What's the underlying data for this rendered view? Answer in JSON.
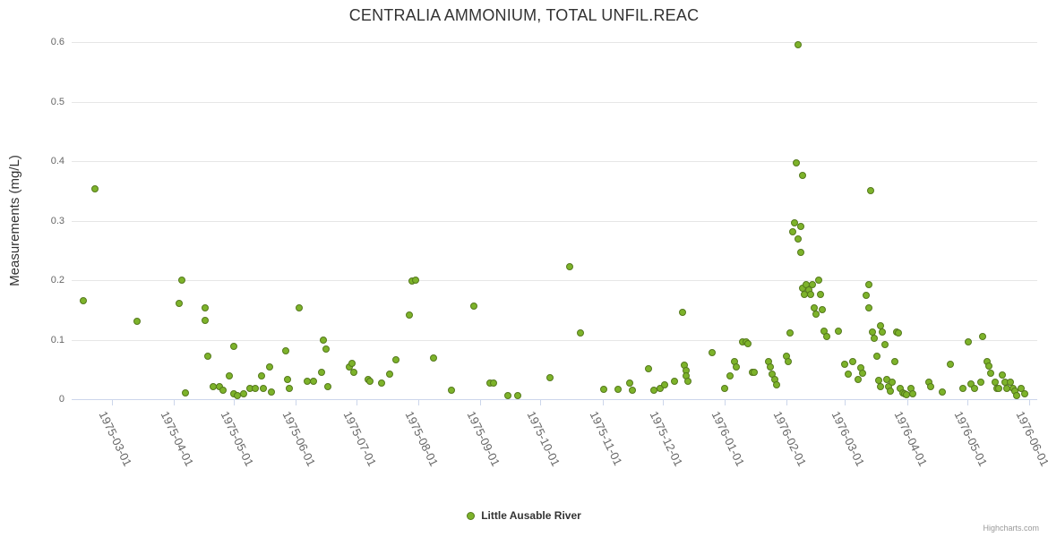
{
  "title": "CENTRALIA AMMONIUM, TOTAL UNFIL.REAC",
  "legend": {
    "series_label": "Little Ausable River"
  },
  "credits": "Highcharts.com",
  "chart_data": {
    "type": "scatter",
    "title": "CENTRALIA AMMONIUM, TOTAL UNFIL.REAC",
    "xlabel": "",
    "ylabel": "Measurements (mg/L)",
    "ylim": [
      0,
      0.6
    ],
    "y_ticks": [
      "0",
      "0.1",
      "0.2",
      "0.3",
      "0.4",
      "0.5",
      "0.6"
    ],
    "x_range": [
      "1975-02-09",
      "1976-06-05"
    ],
    "x_ticks": [
      "1975-03-01",
      "1975-04-01",
      "1975-05-01",
      "1975-06-01",
      "1975-07-01",
      "1975-08-01",
      "1975-09-01",
      "1975-10-01",
      "1975-11-01",
      "1975-12-01",
      "1976-01-01",
      "1976-02-01",
      "1976-03-01",
      "1976-04-01",
      "1976-05-01",
      "1976-06-01"
    ],
    "grid": "horizontal-only",
    "legend_position": "bottom-center",
    "series": [
      {
        "name": "Little Ausable River",
        "color": "#7db32a",
        "marker_border_color": "#55791d",
        "points": [
          [
            "1975-02-15",
            0.165
          ],
          [
            "1975-02-21",
            0.352
          ],
          [
            "1975-03-14",
            0.13
          ],
          [
            "1975-04-04",
            0.16
          ],
          [
            "1975-04-05",
            0.2
          ],
          [
            "1975-04-07",
            0.01
          ],
          [
            "1975-04-17",
            0.152
          ],
          [
            "1975-04-17",
            0.132
          ],
          [
            "1975-04-18",
            0.071
          ],
          [
            "1975-04-21",
            0.021
          ],
          [
            "1975-04-24",
            0.021
          ],
          [
            "1975-04-26",
            0.015
          ],
          [
            "1975-04-29",
            0.038
          ],
          [
            "1975-05-01",
            0.088
          ],
          [
            "1975-05-01",
            0.009
          ],
          [
            "1975-05-03",
            0.005
          ],
          [
            "1975-05-06",
            0.009
          ],
          [
            "1975-05-09",
            0.017
          ],
          [
            "1975-05-12",
            0.017
          ],
          [
            "1975-05-15",
            0.039
          ],
          [
            "1975-05-16",
            0.018
          ],
          [
            "1975-05-19",
            0.054
          ],
          [
            "1975-05-20",
            0.012
          ],
          [
            "1975-05-27",
            0.08
          ],
          [
            "1975-05-28",
            0.033
          ],
          [
            "1975-05-29",
            0.018
          ],
          [
            "1975-06-03",
            0.152
          ],
          [
            "1975-06-07",
            0.029
          ],
          [
            "1975-06-10",
            0.029
          ],
          [
            "1975-06-14",
            0.045
          ],
          [
            "1975-06-15",
            0.098
          ],
          [
            "1975-06-16",
            0.084
          ],
          [
            "1975-06-17",
            0.02
          ],
          [
            "1975-06-28",
            0.053
          ],
          [
            "1975-06-29",
            0.06
          ],
          [
            "1975-06-30",
            0.045
          ],
          [
            "1975-07-07",
            0.032
          ],
          [
            "1975-07-08",
            0.029
          ],
          [
            "1975-07-14",
            0.026
          ],
          [
            "1975-07-18",
            0.041
          ],
          [
            "1975-07-21",
            0.066
          ],
          [
            "1975-07-28",
            0.14
          ],
          [
            "1975-07-29",
            0.198
          ],
          [
            "1975-07-31",
            0.2
          ],
          [
            "1975-08-09",
            0.068
          ],
          [
            "1975-08-18",
            0.015
          ],
          [
            "1975-08-29",
            0.155
          ],
          [
            "1975-09-06",
            0.026
          ],
          [
            "1975-09-08",
            0.026
          ],
          [
            "1975-09-15",
            0.005
          ],
          [
            "1975-09-20",
            0.005
          ],
          [
            "1975-10-06",
            0.035
          ],
          [
            "1975-10-16",
            0.222
          ],
          [
            "1975-10-21",
            0.11
          ],
          [
            "1975-11-02",
            0.016
          ],
          [
            "1975-11-09",
            0.016
          ],
          [
            "1975-11-15",
            0.027
          ],
          [
            "1975-11-16",
            0.014
          ],
          [
            "1975-11-24",
            0.05
          ],
          [
            "1975-11-27",
            0.014
          ],
          [
            "1975-11-30",
            0.017
          ],
          [
            "1975-12-02",
            0.024
          ],
          [
            "1975-12-07",
            0.029
          ],
          [
            "1975-12-11",
            0.145
          ],
          [
            "1975-12-12",
            0.057
          ],
          [
            "1975-12-13",
            0.047
          ],
          [
            "1975-12-13",
            0.038
          ],
          [
            "1975-12-14",
            0.029
          ],
          [
            "1975-12-26",
            0.077
          ],
          [
            "1976-01-01",
            0.018
          ],
          [
            "1976-01-04",
            0.038
          ],
          [
            "1976-01-06",
            0.063
          ],
          [
            "1976-01-07",
            0.054
          ],
          [
            "1976-01-10",
            0.095
          ],
          [
            "1976-01-12",
            0.095
          ],
          [
            "1976-01-13",
            0.092
          ],
          [
            "1976-01-15",
            0.044
          ],
          [
            "1976-01-16",
            0.044
          ],
          [
            "1976-01-23",
            0.063
          ],
          [
            "1976-01-24",
            0.053
          ],
          [
            "1976-01-25",
            0.042
          ],
          [
            "1976-01-26",
            0.032
          ],
          [
            "1976-01-27",
            0.024
          ],
          [
            "1976-02-01",
            0.072
          ],
          [
            "1976-02-02",
            0.063
          ],
          [
            "1976-02-03",
            0.11
          ],
          [
            "1976-02-04",
            0.28
          ],
          [
            "1976-02-05",
            0.296
          ],
          [
            "1976-02-06",
            0.396
          ],
          [
            "1976-02-07",
            0.595
          ],
          [
            "1976-02-07",
            0.268
          ],
          [
            "1976-02-08",
            0.29
          ],
          [
            "1976-02-08",
            0.246
          ],
          [
            "1976-02-09",
            0.375
          ],
          [
            "1976-02-09",
            0.185
          ],
          [
            "1976-02-10",
            0.175
          ],
          [
            "1976-02-11",
            0.192
          ],
          [
            "1976-02-12",
            0.182
          ],
          [
            "1976-02-13",
            0.175
          ],
          [
            "1976-02-14",
            0.192
          ],
          [
            "1976-02-15",
            0.152
          ],
          [
            "1976-02-16",
            0.142
          ],
          [
            "1976-02-17",
            0.2
          ],
          [
            "1976-02-18",
            0.175
          ],
          [
            "1976-02-19",
            0.15
          ],
          [
            "1976-02-20",
            0.113
          ],
          [
            "1976-02-21",
            0.104
          ],
          [
            "1976-02-27",
            0.113
          ],
          [
            "1976-03-01",
            0.058
          ],
          [
            "1976-03-03",
            0.042
          ],
          [
            "1976-03-05",
            0.063
          ],
          [
            "1976-03-08",
            0.033
          ],
          [
            "1976-03-09",
            0.052
          ],
          [
            "1976-03-10",
            0.043
          ],
          [
            "1976-03-12",
            0.173
          ],
          [
            "1976-03-13",
            0.192
          ],
          [
            "1976-03-13",
            0.152
          ],
          [
            "1976-03-14",
            0.35
          ],
          [
            "1976-03-15",
            0.112
          ],
          [
            "1976-03-16",
            0.102
          ],
          [
            "1976-03-17",
            0.072
          ],
          [
            "1976-03-18",
            0.031
          ],
          [
            "1976-03-19",
            0.02
          ],
          [
            "1976-03-19",
            0.123
          ],
          [
            "1976-03-20",
            0.112
          ],
          [
            "1976-03-21",
            0.091
          ],
          [
            "1976-03-22",
            0.032
          ],
          [
            "1976-03-23",
            0.02
          ],
          [
            "1976-03-24",
            0.013
          ],
          [
            "1976-03-25",
            0.028
          ],
          [
            "1976-03-26",
            0.062
          ],
          [
            "1976-03-27",
            0.112
          ],
          [
            "1976-03-28",
            0.11
          ],
          [
            "1976-03-29",
            0.017
          ],
          [
            "1976-03-30",
            0.01
          ],
          [
            "1976-03-31",
            0.008
          ],
          [
            "1976-04-01",
            0.007
          ],
          [
            "1976-04-03",
            0.017
          ],
          [
            "1976-04-04",
            0.008
          ],
          [
            "1976-04-12",
            0.028
          ],
          [
            "1976-04-13",
            0.021
          ],
          [
            "1976-04-19",
            0.012
          ],
          [
            "1976-04-23",
            0.058
          ],
          [
            "1976-04-29",
            0.017
          ],
          [
            "1976-05-02",
            0.095
          ],
          [
            "1976-05-03",
            0.025
          ],
          [
            "1976-05-05",
            0.018
          ],
          [
            "1976-05-08",
            0.028
          ],
          [
            "1976-05-09",
            0.105
          ],
          [
            "1976-05-11",
            0.062
          ],
          [
            "1976-05-12",
            0.055
          ],
          [
            "1976-05-13",
            0.043
          ],
          [
            "1976-05-15",
            0.028
          ],
          [
            "1976-05-16",
            0.017
          ],
          [
            "1976-05-17",
            0.017
          ],
          [
            "1976-05-19",
            0.04
          ],
          [
            "1976-05-20",
            0.028
          ],
          [
            "1976-05-21",
            0.017
          ],
          [
            "1976-05-23",
            0.028
          ],
          [
            "1976-05-24",
            0.017
          ],
          [
            "1976-05-25",
            0.013
          ],
          [
            "1976-05-26",
            0.005
          ],
          [
            "1976-05-28",
            0.017
          ],
          [
            "1976-05-30",
            0.008
          ]
        ]
      }
    ]
  }
}
